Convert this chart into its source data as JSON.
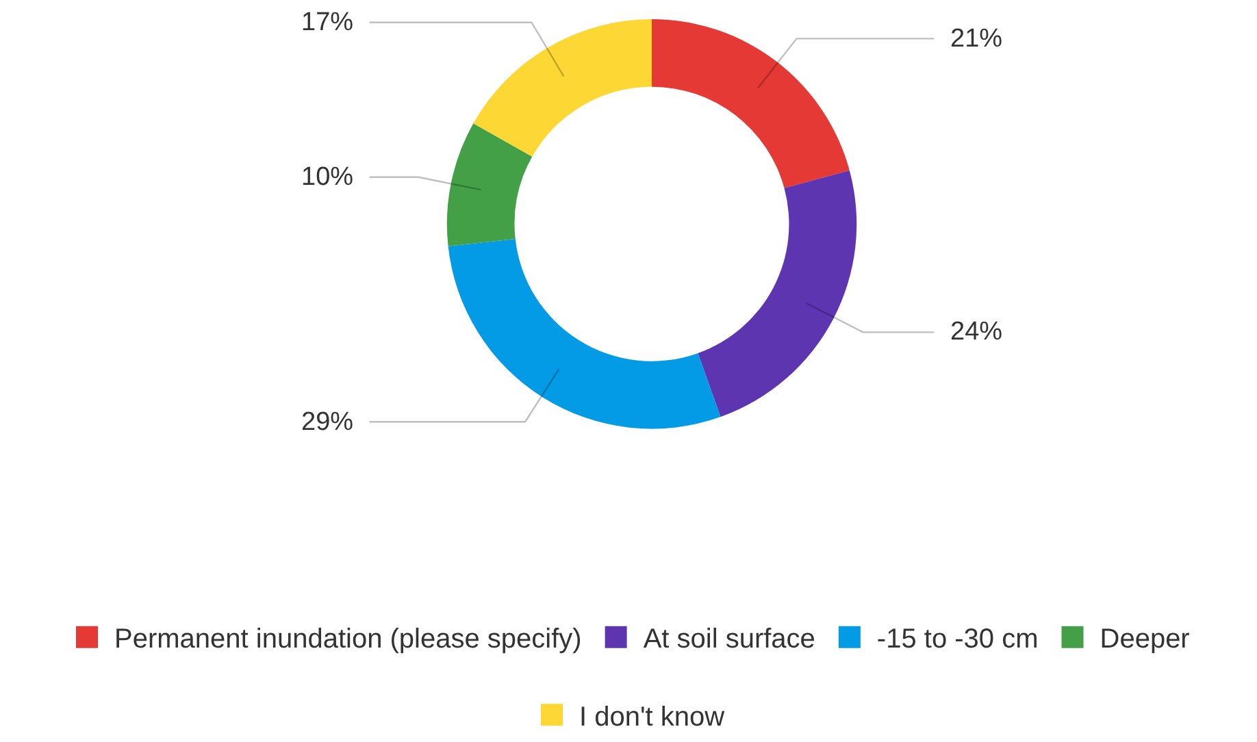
{
  "chart_data": {
    "type": "donut",
    "categories": [
      "Permanent inundation (please specify)",
      "At soil surface",
      "-15 to -30 cm",
      "Deeper",
      "I don't know"
    ],
    "values": [
      21,
      24,
      29,
      10,
      17
    ],
    "value_labels": [
      "21%",
      "24%",
      "29%",
      "10%",
      "17%"
    ],
    "colors": [
      "#e53935",
      "#5e35b1",
      "#039be5",
      "#43a047",
      "#fdd835"
    ],
    "legend": "bottom"
  }
}
